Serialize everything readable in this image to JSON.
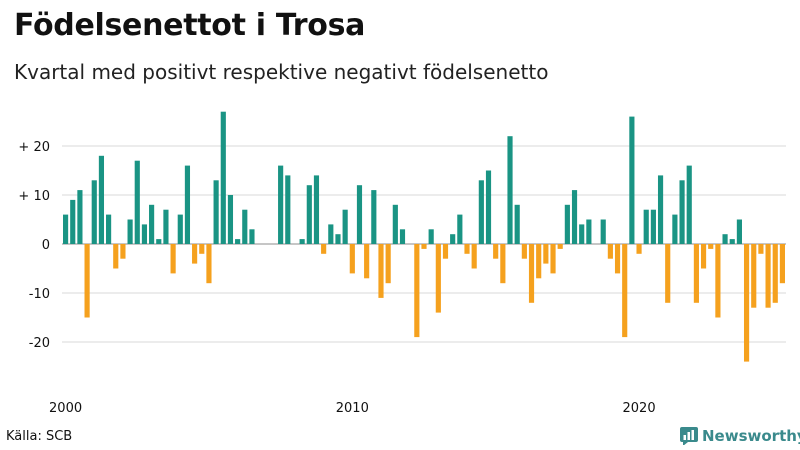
{
  "title": "Födelsenettot i Trosa",
  "subtitle": "Kvartal med positivt respektive negativt födelsenetto",
  "source": "Källa: SCB",
  "brand": "Newsworthy",
  "colors": {
    "positive": "#1a9484",
    "negative": "#f5a11e",
    "grid": "#d9d9d9",
    "brand": "#3a8a8c"
  },
  "chart_data": {
    "type": "bar",
    "x_start": "2000 Q1",
    "x_ticks": [
      {
        "label": "2000",
        "index": 0
      },
      {
        "label": "2010",
        "index": 40
      },
      {
        "label": "2020",
        "index": 80
      }
    ],
    "y_ticks": [
      {
        "label": "+ 20",
        "value": 20
      },
      {
        "label": "+ 10",
        "value": 10
      },
      {
        "label": "0",
        "value": 0
      },
      {
        "label": "-10",
        "value": -10
      },
      {
        "label": "-20",
        "value": -20
      }
    ],
    "ylim": [
      -26,
      28
    ],
    "grid": true,
    "values": [
      6,
      9,
      11,
      -15,
      13,
      18,
      6,
      -5,
      -3,
      5,
      17,
      4,
      8,
      1,
      7,
      -6,
      6,
      16,
      -4,
      -2,
      -8,
      13,
      27,
      10,
      1,
      7,
      3,
      0,
      0,
      0,
      16,
      14,
      0,
      1,
      12,
      14,
      -2,
      4,
      2,
      7,
      -6,
      12,
      -7,
      11,
      -11,
      -8,
      8,
      3,
      0,
      -19,
      -1,
      3,
      -14,
      -3,
      2,
      6,
      -2,
      -5,
      13,
      15,
      -3,
      -8,
      22,
      8,
      -3,
      -12,
      -7,
      -4,
      -6,
      -1,
      8,
      11,
      4,
      5,
      0,
      5,
      -3,
      -6,
      -19,
      26,
      -2,
      7,
      7,
      14,
      -12,
      6,
      13,
      16,
      -12,
      -5,
      -1,
      -15,
      2,
      1,
      5,
      -24,
      -13,
      -2,
      -13,
      -12,
      -8
    ]
  }
}
